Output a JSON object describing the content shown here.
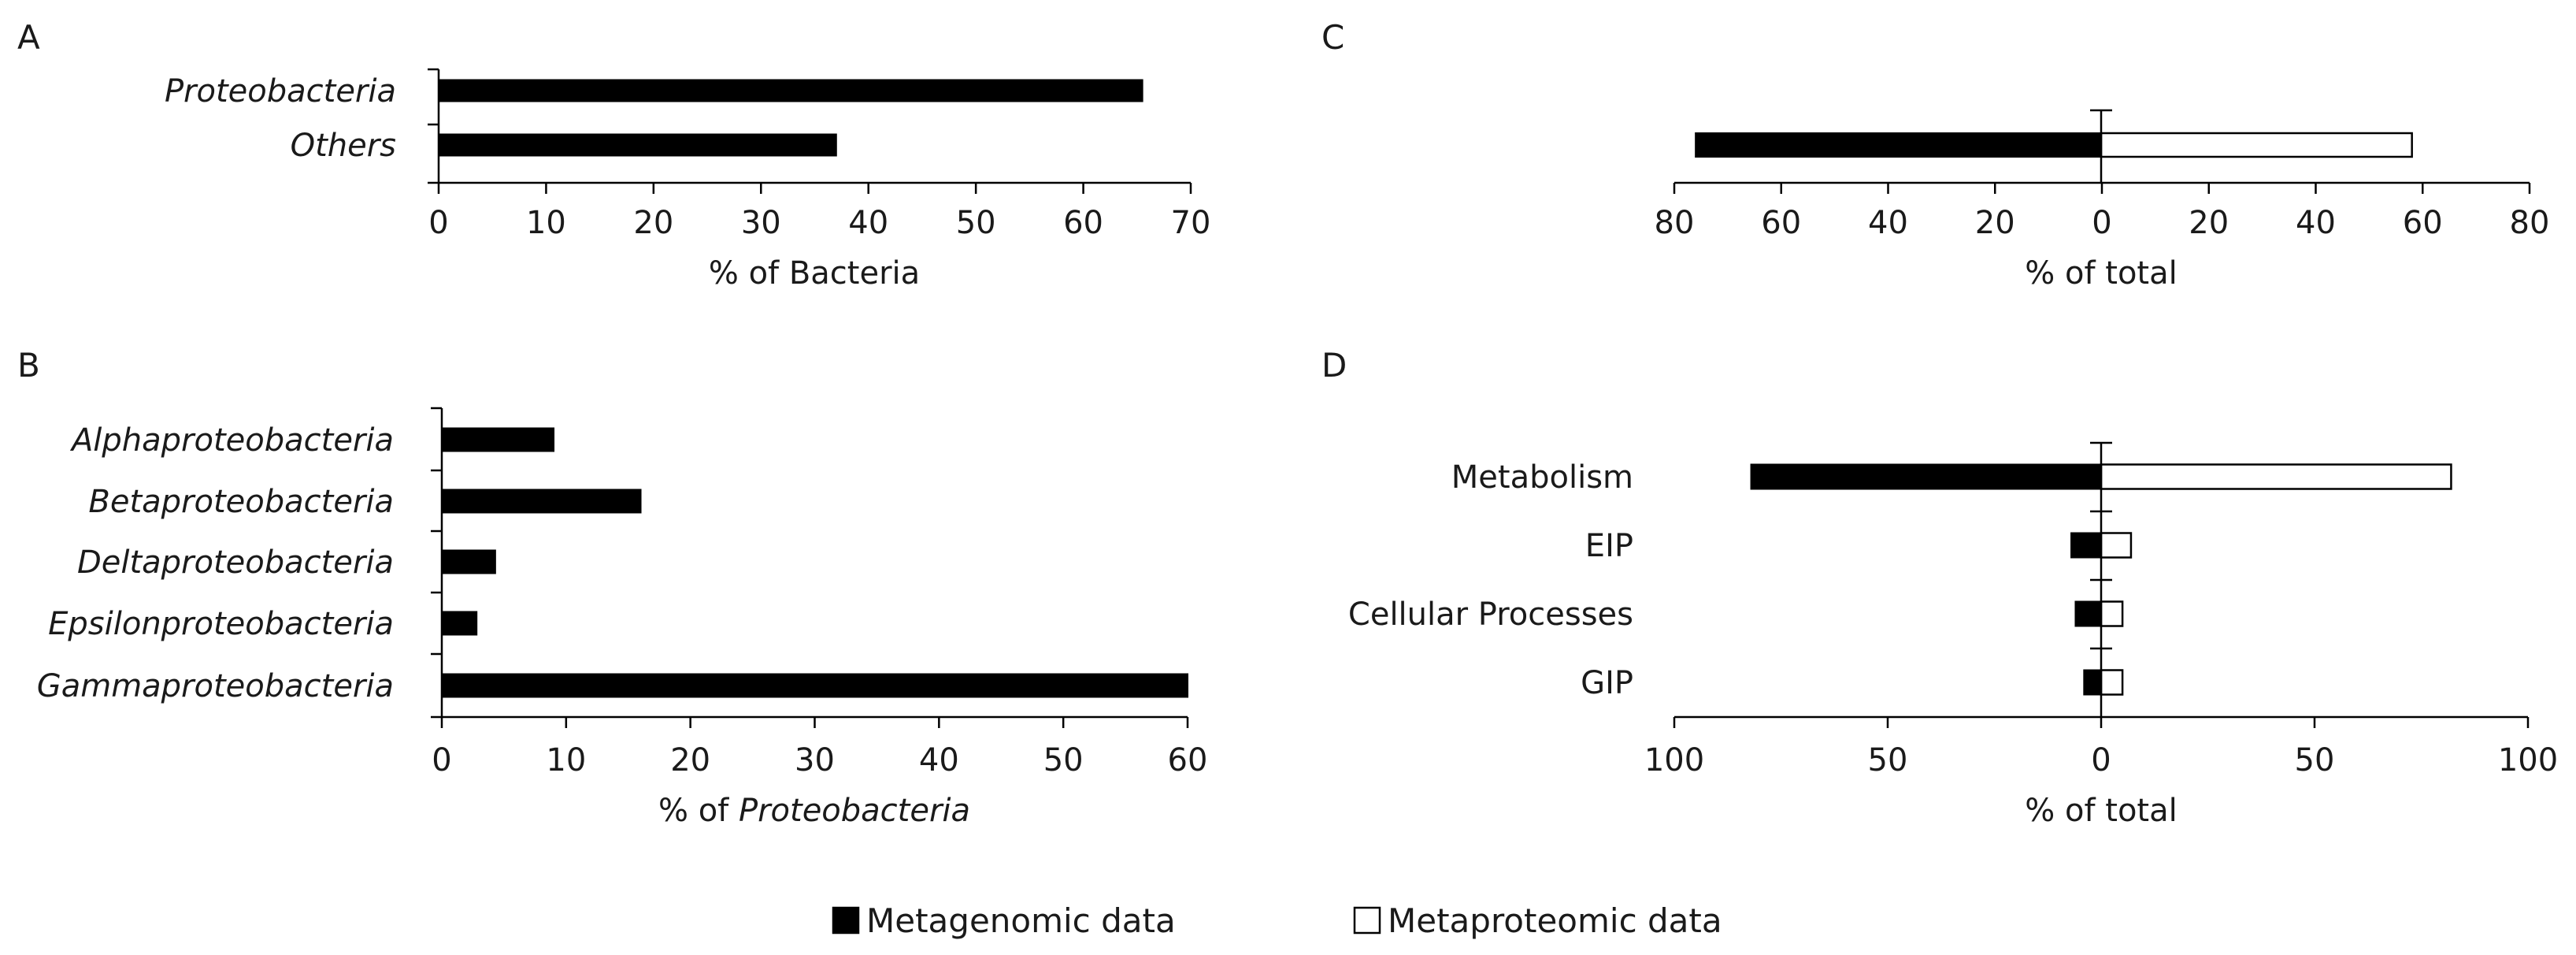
{
  "chart_data": [
    {
      "panel": "A",
      "type": "bar",
      "orientation": "horizontal",
      "categories": [
        "Proteobacteria",
        "Others"
      ],
      "italic_categories": true,
      "series": [
        {
          "name": "Metagenomic data",
          "values": [
            65.5,
            37
          ]
        }
      ],
      "xlabel": "% of Bacteria",
      "xlim": [
        0,
        70
      ],
      "xticks": [
        0,
        10,
        20,
        30,
        40,
        50,
        60,
        70
      ],
      "xtick_labels": [
        "0",
        "10",
        "20",
        "30",
        "40",
        "50",
        "60",
        "70"
      ]
    },
    {
      "panel": "B",
      "type": "bar",
      "orientation": "horizontal",
      "categories": [
        "Alphaproteobacteria",
        "Betaproteobacteria",
        "Deltaproteobacteria",
        "Epsilonproteobacteria",
        "Gammaproteobacteria"
      ],
      "italic_categories": true,
      "series": [
        {
          "name": "Metagenomic data",
          "values": [
            9,
            16,
            4.3,
            2.8,
            60
          ]
        }
      ],
      "xlabel_prefix": "% of ",
      "xlabel_italic": "Proteobacteria",
      "xlim": [
        0,
        60
      ],
      "xticks": [
        0,
        10,
        20,
        30,
        40,
        50,
        60
      ],
      "xtick_labels": [
        "0",
        "10",
        "20",
        "30",
        "40",
        "50",
        "60"
      ]
    },
    {
      "panel": "C",
      "type": "bar",
      "orientation": "horizontal-diverging",
      "categories": [
        ""
      ],
      "series": [
        {
          "name": "Metagenomic data",
          "side": "left",
          "values": [
            76
          ]
        },
        {
          "name": "Metaproteomic data",
          "side": "right",
          "values": [
            58
          ]
        }
      ],
      "xlabel": "% of total",
      "xlim": [
        -80,
        80
      ],
      "xticks": [
        -80,
        -60,
        -40,
        -20,
        0,
        20,
        40,
        60,
        80
      ],
      "xtick_labels": [
        "80",
        "60",
        "40",
        "20",
        "0",
        "20",
        "40",
        "60",
        "80"
      ]
    },
    {
      "panel": "D",
      "type": "bar",
      "orientation": "horizontal-diverging",
      "categories": [
        "Metabolism",
        "EIP",
        "Cellular Processes",
        "GIP"
      ],
      "series": [
        {
          "name": "Metagenomic data",
          "side": "left",
          "values": [
            82,
            7,
            6,
            4
          ]
        },
        {
          "name": "Metaproteomic data",
          "side": "right",
          "values": [
            82,
            7,
            5,
            5
          ]
        }
      ],
      "xlabel": "% of total",
      "xlim": [
        -100,
        100
      ],
      "xticks": [
        -100,
        -50,
        0,
        50,
        100
      ],
      "xtick_labels": [
        "100",
        "50",
        "0",
        "50",
        "100"
      ]
    }
  ],
  "legend": {
    "position": "bottom-center",
    "entries": [
      {
        "label": "Metagenomic data",
        "color": "#000000"
      },
      {
        "label": "Metaproteomic data",
        "color": "#ffffff"
      }
    ]
  },
  "colors": {
    "metagenomic_fill": "#000000",
    "metaproteomic_fill": "#ffffff",
    "stroke": "#000000"
  }
}
